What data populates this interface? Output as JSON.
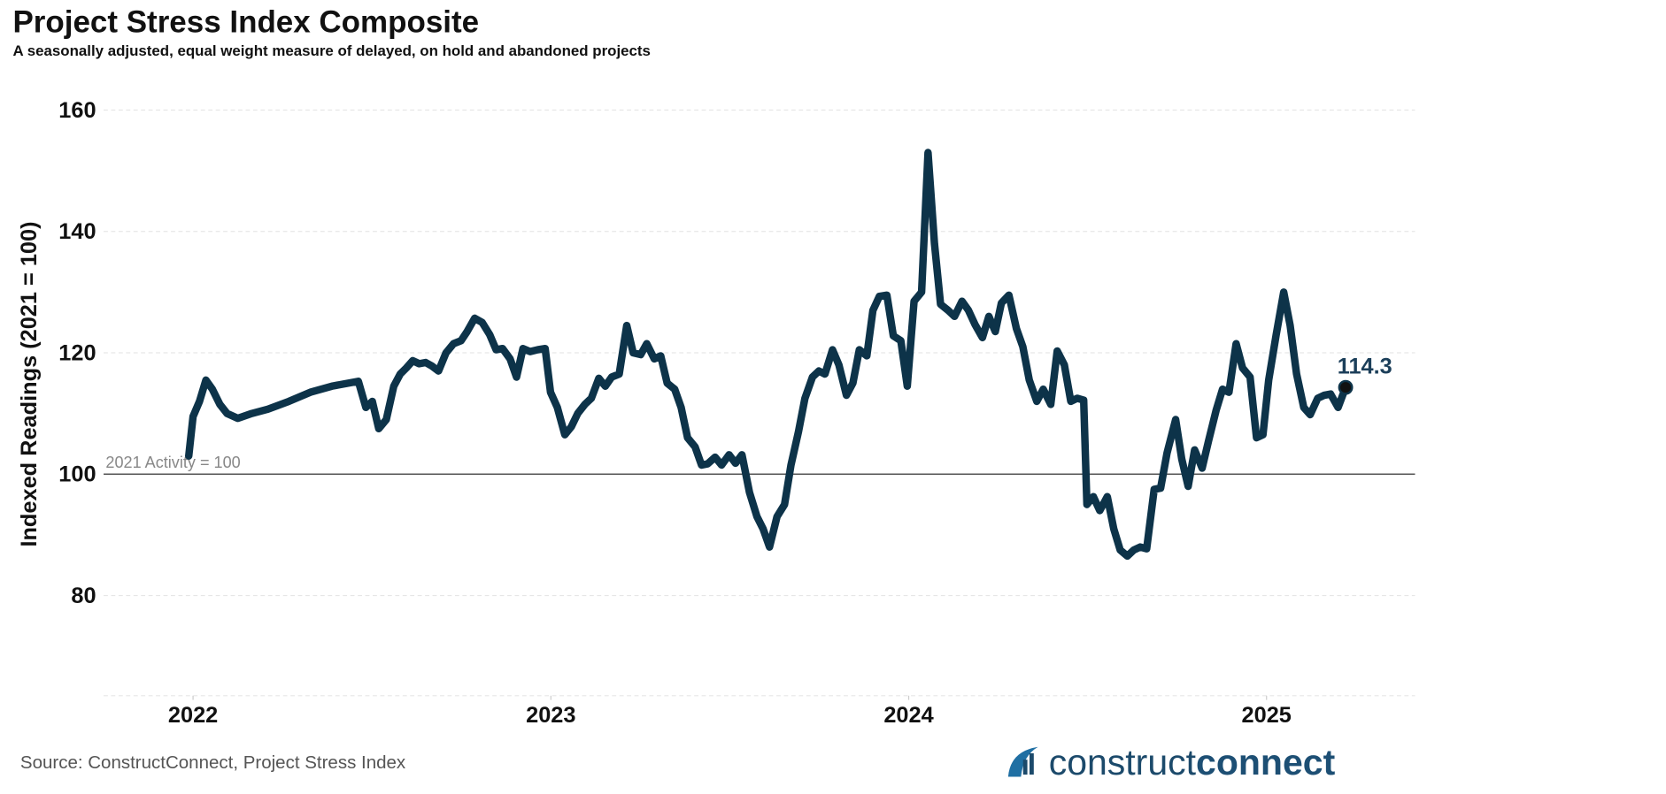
{
  "chart_data": {
    "type": "line",
    "title": "Project Stress Index Composite",
    "subtitle": "A seasonally adjusted, equal weight measure of delayed, on hold and abandoned projects",
    "y_label": "Indexed Readings (2021 = 100)",
    "source": "Source: ConstructConnect, Project Stress Index",
    "logo": {
      "light": "construct",
      "bold": "connect"
    },
    "color": "#0d3349",
    "xlim": [
      2021.75,
      2025.415
    ],
    "xticks": [
      2022,
      2023,
      2024,
      2025
    ],
    "ylim": [
      63.5,
      160
    ],
    "yticks": [
      80,
      100,
      120,
      140,
      160
    ],
    "grid": true,
    "reference": {
      "value": 100,
      "label": "2021 Activity = 100"
    },
    "annotations": [
      {
        "x": 2025.221,
        "y": 114.3,
        "label": "114.3"
      }
    ],
    "x": [
      2021.988,
      2022.0,
      2022.018,
      2022.036,
      2022.054,
      2022.075,
      2022.095,
      2022.125,
      2022.164,
      2022.209,
      2022.268,
      2022.328,
      2022.388,
      2022.462,
      2022.483,
      2022.501,
      2022.519,
      2022.54,
      2022.561,
      2022.579,
      2022.596,
      2022.614,
      2022.632,
      2022.65,
      2022.668,
      2022.686,
      2022.707,
      2022.728,
      2022.749,
      2022.766,
      2022.787,
      2022.808,
      2022.829,
      2022.847,
      2022.865,
      2022.886,
      2022.904,
      2022.922,
      2022.942,
      2022.963,
      2022.984,
      2022.999,
      2023.018,
      2023.039,
      2023.057,
      2023.075,
      2023.095,
      2023.113,
      2023.134,
      2023.152,
      2023.17,
      2023.191,
      2023.212,
      2023.23,
      2023.251,
      2023.268,
      2023.289,
      2023.307,
      2023.325,
      2023.346,
      2023.364,
      2023.382,
      2023.403,
      2023.421,
      2023.438,
      2023.459,
      2023.477,
      2023.498,
      2023.516,
      2023.534,
      2023.555,
      2023.576,
      2023.593,
      2023.611,
      2023.632,
      2023.653,
      2023.671,
      2023.692,
      2023.71,
      2023.731,
      2023.749,
      2023.766,
      2023.787,
      2023.805,
      2023.826,
      2023.844,
      2023.862,
      2023.883,
      2023.9,
      2023.918,
      2023.939,
      2023.957,
      2023.978,
      2023.996,
      2024.015,
      2024.036,
      2024.054,
      2024.072,
      2024.089,
      2024.11,
      2024.128,
      2024.149,
      2024.167,
      2024.185,
      2024.206,
      2024.224,
      2024.242,
      2024.259,
      2024.28,
      2024.301,
      2024.319,
      2024.337,
      2024.358,
      2024.376,
      2024.397,
      2024.415,
      2024.435,
      2024.453,
      2024.471,
      2024.489,
      2024.498,
      2024.516,
      2024.534,
      2024.555,
      2024.573,
      2024.591,
      2024.611,
      2024.629,
      2024.647,
      2024.665,
      2024.686,
      2024.704,
      2024.722,
      2024.746,
      2024.763,
      2024.781,
      2024.799,
      2024.82,
      2024.838,
      2024.859,
      2024.877,
      2024.895,
      2024.915,
      2024.933,
      2024.954,
      2024.972,
      2024.99,
      2025.006,
      2025.027,
      2025.048,
      2025.066,
      2025.084,
      2025.104,
      2025.122,
      2025.143,
      2025.161,
      2025.179,
      2025.2,
      2025.221
    ],
    "values": [
      103,
      109.5,
      112,
      115.5,
      114,
      111.5,
      110,
      109.2,
      110,
      110.7,
      112,
      113.5,
      114.5,
      115.3,
      111,
      112,
      107.5,
      109,
      114.5,
      116.5,
      117.5,
      118.7,
      118.2,
      118.4,
      117.8,
      117,
      120,
      121.5,
      122,
      123.5,
      125.7,
      125,
      123,
      120.5,
      120.7,
      119,
      116,
      120.7,
      120.2,
      120.5,
      120.7,
      113.5,
      111,
      106.5,
      107.8,
      110,
      111.5,
      112.5,
      115.8,
      114.5,
      116,
      116.5,
      124.5,
      120,
      119.7,
      121.5,
      119,
      119.5,
      115,
      114,
      111,
      106,
      104.5,
      101.5,
      101.7,
      102.8,
      101.5,
      103.2,
      101.8,
      103.2,
      97,
      93,
      91,
      88,
      93,
      95,
      101.5,
      107,
      112.5,
      116,
      117,
      116.5,
      120.5,
      118,
      113,
      115,
      120.5,
      119.5,
      127,
      129.3,
      129.5,
      122.8,
      122,
      114.5,
      128.5,
      130,
      153,
      138,
      128,
      127,
      126,
      128.5,
      127,
      124.7,
      122.5,
      126,
      123.5,
      128.2,
      129.5,
      124,
      121,
      115.5,
      112,
      114,
      111.5,
      120.3,
      118,
      112,
      112.5,
      112.2,
      95,
      96.3,
      94,
      96.3,
      91,
      87.5,
      86.5,
      87.5,
      88,
      87.7,
      97.5,
      97.7,
      103.5,
      109,
      102.5,
      98,
      104,
      101,
      105.5,
      110.5,
      114,
      113.5,
      121.5,
      117.5,
      116,
      106,
      106.5,
      115.5,
      123,
      130,
      124.5,
      116.5,
      111,
      109.8,
      112.5,
      113,
      113.2,
      111,
      114.3
    ]
  }
}
